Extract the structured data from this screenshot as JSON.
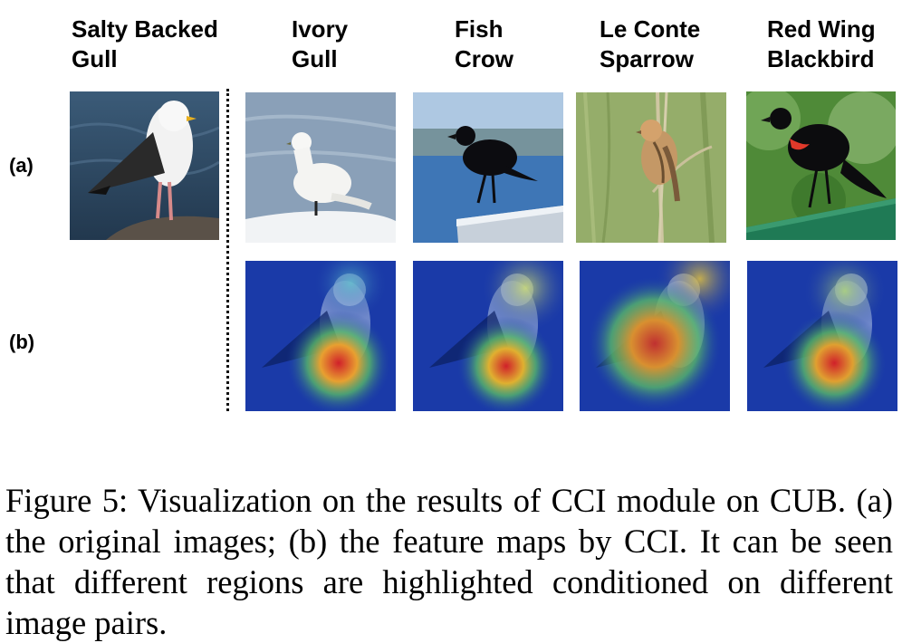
{
  "figure": {
    "columns": [
      {
        "line1": "Salty Backed",
        "line2": "Gull"
      },
      {
        "line1": "Ivory",
        "line2": "Gull"
      },
      {
        "line1": "Fish",
        "line2": "Crow"
      },
      {
        "line1": "Le Conte",
        "line2": "Sparrow"
      },
      {
        "line1": "Red  Wing",
        "line2": "Blackbird"
      }
    ],
    "rows": {
      "a": "(a)",
      "b": "(b)"
    },
    "caption": "Figure 5: Visualization on the results of CCI module on CUB. (a) the original images; (b) the feature maps by CCI. It can be seen that different regions are highlighted conditioned on different image pairs."
  },
  "colors": {
    "water_dark": "#2d4c66",
    "snow": "#e8ecf0",
    "sky_blue": "#5a86b4",
    "grass_green": "#8aa356",
    "foliage_green": "#3c7a2a",
    "heatmap_blue": "#1a3aa8",
    "heatmap_red": "#d0202a"
  }
}
